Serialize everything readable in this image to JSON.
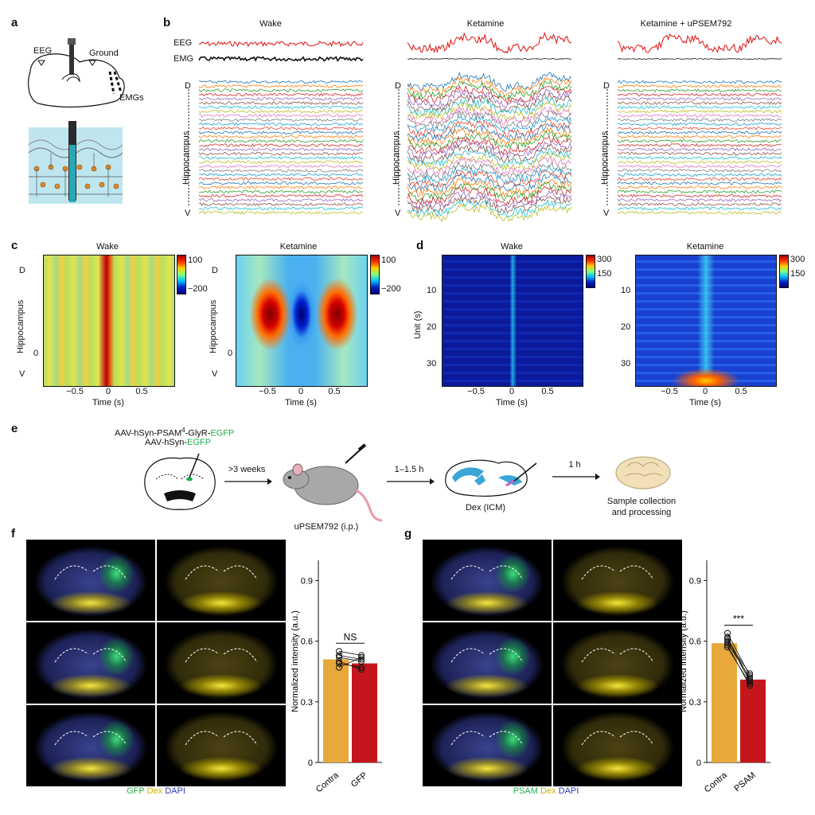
{
  "panels": {
    "a": "a",
    "b": "b",
    "c": "c",
    "d": "d",
    "e": "e",
    "f": "f",
    "g": "g"
  },
  "a": {
    "eeg": "EEG",
    "ground": "Ground",
    "emgs": "EMGs"
  },
  "b": {
    "cond_wake": "Wake",
    "cond_ket": "Ketamine",
    "cond_ket_u": "Ketamine + uPSEM792",
    "eeg": "EEG",
    "emg": "EMG",
    "d": "D",
    "v": "V",
    "hippo": "Hippocampus"
  },
  "c": {
    "title_wake": "Wake",
    "title_ket": "Ketamine",
    "d": "D",
    "v": "V",
    "hippo": "Hippocampus",
    "zero": "0",
    "xlabel": "Time (s)",
    "xticks": [
      "−0.5",
      "0",
      "0.5"
    ],
    "cbar": [
      "100",
      "−200"
    ]
  },
  "d": {
    "title_wake": "Wake",
    "title_ket": "Ketamine",
    "ylabel": "Unit (s)",
    "yticks": [
      "10",
      "20",
      "30"
    ],
    "xlabel": "Time (s)",
    "xticks": [
      "−0.5",
      "0",
      "0.5"
    ],
    "cbar": [
      "300",
      "150"
    ]
  },
  "e": {
    "virus1_pre": "AAV-hSyn-PSAM",
    "virus1_sup": "4",
    "virus1_mid": "-GlyR-",
    "virus1_egfp": "EGFP",
    "virus2_pre": "AAV-hSyn-",
    "virus2_egfp": "EGFP",
    "step1": ">3 weeks",
    "drug": "uPSEM792 (i.p.)",
    "step2": "1–1.5 h",
    "dex": "Dex (ICM)",
    "step3": "1 h",
    "sample1": "Sample collection",
    "sample2": "and processing"
  },
  "f": {
    "legend": [
      {
        "text": "GFP",
        "color": "#22b14c"
      },
      {
        "text": "Dex",
        "color": "#d8c400"
      },
      {
        "text": "DAPI",
        "color": "#2a3bb0"
      }
    ]
  },
  "g": {
    "legend": [
      {
        "text": "PSAM",
        "color": "#22b14c"
      },
      {
        "text": "Dex",
        "color": "#d8c400"
      },
      {
        "text": "DAPI",
        "color": "#2a3bb0"
      }
    ]
  },
  "chart_data": [
    {
      "type": "bar",
      "panel": "f",
      "categories": [
        "Contra",
        "GFP"
      ],
      "values": [
        0.51,
        0.49
      ],
      "colors": [
        "#e8a93a",
        "#c4161c"
      ],
      "ylabel": "Normalized intensity (a.u.)",
      "ylim": [
        0,
        1.0
      ],
      "yticks": [
        0,
        0.3,
        0.6,
        0.9
      ],
      "yticklabels": [
        "0",
        "0.3",
        "0.6",
        "0.9"
      ],
      "annotation": "NS",
      "paired_points": [
        [
          0.55,
          0.53
        ],
        [
          0.52,
          0.5
        ],
        [
          0.49,
          0.47
        ],
        [
          0.53,
          0.51
        ],
        [
          0.47,
          0.52
        ],
        [
          0.5,
          0.46
        ]
      ]
    },
    {
      "type": "bar",
      "panel": "g",
      "categories": [
        "Contra",
        "PSAM"
      ],
      "values": [
        0.59,
        0.41
      ],
      "colors": [
        "#e8a93a",
        "#c4161c"
      ],
      "ylabel": "Normalized intensity (a.u.)",
      "ylim": [
        0,
        1.0
      ],
      "yticks": [
        0,
        0.3,
        0.6,
        0.9
      ],
      "yticklabels": [
        "0",
        "0.3",
        "0.6",
        "0.9"
      ],
      "annotation": "***",
      "paired_points": [
        [
          0.64,
          0.43
        ],
        [
          0.61,
          0.4
        ],
        [
          0.6,
          0.44
        ],
        [
          0.58,
          0.38
        ],
        [
          0.62,
          0.41
        ],
        [
          0.57,
          0.39
        ],
        [
          0.59,
          0.42
        ]
      ]
    }
  ]
}
